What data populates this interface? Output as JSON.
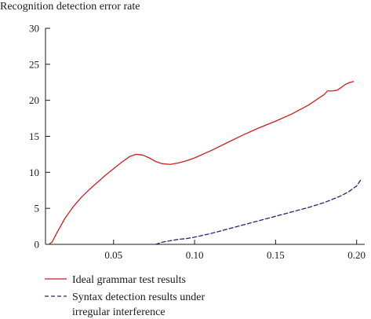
{
  "chart_data": {
    "type": "line",
    "title": "",
    "ylabel": "Recognition detection error rate",
    "xlabel": "",
    "xlim": [
      0.008,
      0.205
    ],
    "ylim": [
      0,
      30
    ],
    "xticks": [
      0.05,
      0.1,
      0.15,
      0.2
    ],
    "xtick_labels": [
      "0.05",
      "0.10",
      "0.15",
      "0.20"
    ],
    "yticks": [
      0,
      5,
      10,
      15,
      20,
      25,
      30
    ],
    "ytick_labels": [
      "0",
      "5",
      "10",
      "15",
      "20",
      "25",
      "30"
    ],
    "grid": false,
    "legend_position": "bottom-left",
    "series": [
      {
        "name": "Ideal grammar test results",
        "color": "#cc1f1f",
        "style": "solid",
        "x": [
          0.01,
          0.012,
          0.015,
          0.02,
          0.025,
          0.03,
          0.035,
          0.04,
          0.045,
          0.05,
          0.055,
          0.06,
          0.064,
          0.068,
          0.072,
          0.076,
          0.08,
          0.085,
          0.09,
          0.095,
          0.1,
          0.11,
          0.12,
          0.13,
          0.14,
          0.15,
          0.16,
          0.17,
          0.18,
          0.182,
          0.185,
          0.188,
          0.19,
          0.193,
          0.196,
          0.198
        ],
        "y": [
          0.0,
          0.3,
          1.6,
          3.6,
          5.2,
          6.5,
          7.6,
          8.6,
          9.6,
          10.5,
          11.4,
          12.2,
          12.5,
          12.4,
          12.0,
          11.5,
          11.2,
          11.1,
          11.3,
          11.6,
          12.0,
          13.0,
          14.1,
          15.2,
          16.2,
          17.1,
          18.1,
          19.3,
          20.8,
          21.3,
          21.3,
          21.4,
          21.7,
          22.2,
          22.5,
          22.6
        ]
      },
      {
        "name": "Syntax detection results under\nirregular interference",
        "color": "#262670",
        "style": "dashed",
        "x": [
          0.076,
          0.08,
          0.085,
          0.09,
          0.095,
          0.1,
          0.11,
          0.12,
          0.13,
          0.14,
          0.15,
          0.16,
          0.17,
          0.18,
          0.19,
          0.195,
          0.2,
          0.203
        ],
        "y": [
          0.0,
          0.3,
          0.5,
          0.7,
          0.8,
          1.0,
          1.5,
          2.1,
          2.7,
          3.3,
          3.9,
          4.5,
          5.1,
          5.8,
          6.7,
          7.3,
          8.1,
          9.1
        ]
      }
    ],
    "legend_labels": [
      "Ideal grammar test results",
      "Syntax detection results under",
      "irregular interference"
    ]
  }
}
